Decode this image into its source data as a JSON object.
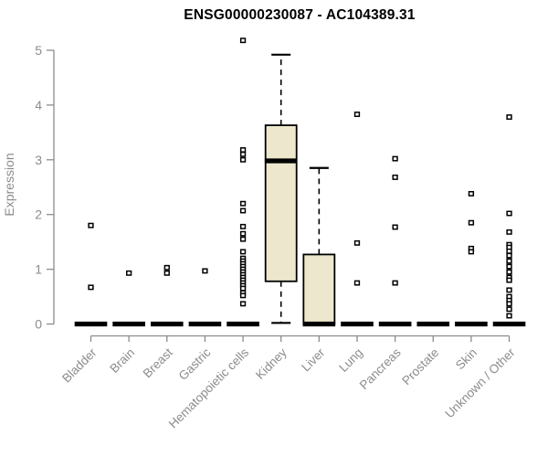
{
  "chart_data": {
    "type": "boxplot",
    "title": "ENSG00000230087 - AC104389.31",
    "xlabel": "",
    "ylabel": "Expression",
    "ylim": [
      0,
      5
    ],
    "yticks": [
      0,
      1,
      2,
      3,
      4,
      5
    ],
    "grid": false,
    "legend": "none",
    "colors": {
      "box_fill": "#EDE8CD",
      "box_stroke": "#000000",
      "median": "#000000",
      "whisker": "#000000",
      "outlier_fill": "#FFFFFF",
      "outlier_stroke": "#000000",
      "axis": "#8C8C8C",
      "tick_text": "#8C8C8C",
      "title_text": "#000000",
      "background": "#FFFFFF"
    },
    "categories": [
      "Bladder",
      "Brain",
      "Breast",
      "Gastric",
      "Hematopoietic cells",
      "Kidney",
      "Liver",
      "Lung",
      "Pancreas",
      "Prostate",
      "Skin",
      "Unknown / Other"
    ],
    "series": [
      {
        "category": "Bladder",
        "q1": 0,
        "median": 0,
        "q3": 0,
        "whisker_low": 0,
        "whisker_high": 0,
        "outliers": [
          1.8,
          0.67
        ]
      },
      {
        "category": "Brain",
        "q1": 0,
        "median": 0,
        "q3": 0,
        "whisker_low": 0,
        "whisker_high": 0,
        "outliers": [
          0.93
        ]
      },
      {
        "category": "Breast",
        "q1": 0,
        "median": 0,
        "q3": 0,
        "whisker_low": 0,
        "whisker_high": 0,
        "outliers": [
          1.03,
          0.93
        ]
      },
      {
        "category": "Gastric",
        "q1": 0,
        "median": 0,
        "q3": 0,
        "whisker_low": 0,
        "whisker_high": 0,
        "outliers": [
          0.97
        ]
      },
      {
        "category": "Hematopoietic cells",
        "q1": 0,
        "median": 0,
        "q3": 0,
        "whisker_low": 0,
        "whisker_high": 0,
        "outliers": [
          5.18,
          3.18,
          3.1,
          3.0,
          2.2,
          2.07,
          1.78,
          1.65,
          1.55,
          1.32,
          1.2,
          1.15,
          1.1,
          1.05,
          1.0,
          0.95,
          0.9,
          0.85,
          0.8,
          0.75,
          0.7,
          0.65,
          0.57,
          0.52,
          0.37
        ]
      },
      {
        "category": "Kidney",
        "q1": 0.78,
        "median": 2.98,
        "q3": 3.63,
        "whisker_low": 0.02,
        "whisker_high": 4.92,
        "outliers": []
      },
      {
        "category": "Liver",
        "q1": 0,
        "median": 0,
        "q3": 1.27,
        "whisker_low": 0,
        "whisker_high": 2.85,
        "outliers": []
      },
      {
        "category": "Lung",
        "q1": 0,
        "median": 0,
        "q3": 0,
        "whisker_low": 0,
        "whisker_high": 0,
        "outliers": [
          3.83,
          1.48,
          0.75
        ]
      },
      {
        "category": "Pancreas",
        "q1": 0,
        "median": 0,
        "q3": 0,
        "whisker_low": 0,
        "whisker_high": 0,
        "outliers": [
          3.02,
          2.68,
          1.77,
          0.75
        ]
      },
      {
        "category": "Prostate",
        "q1": 0,
        "median": 0,
        "q3": 0,
        "whisker_low": 0,
        "whisker_high": 0,
        "outliers": []
      },
      {
        "category": "Skin",
        "q1": 0,
        "median": 0,
        "q3": 0,
        "whisker_low": 0,
        "whisker_high": 0,
        "outliers": [
          2.38,
          1.85,
          1.38,
          1.32
        ]
      },
      {
        "category": "Unknown / Other",
        "q1": 0,
        "median": 0,
        "q3": 0,
        "whisker_low": 0,
        "whisker_high": 0,
        "outliers": [
          3.78,
          2.02,
          1.68,
          1.45,
          1.4,
          1.33,
          1.25,
          1.15,
          1.05,
          0.95,
          0.85,
          0.8,
          0.62,
          0.5,
          0.43,
          0.37,
          0.27,
          0.15
        ]
      }
    ]
  }
}
